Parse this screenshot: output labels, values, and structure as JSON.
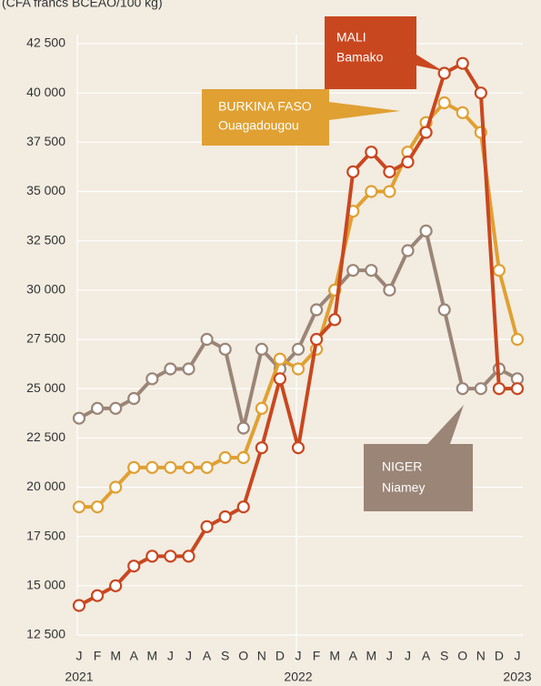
{
  "chart_data": {
    "type": "line",
    "subtitle": "(CFA francs BCEAO/100 kg)",
    "categories": [
      "J",
      "F",
      "M",
      "A",
      "M",
      "J",
      "J",
      "A",
      "S",
      "O",
      "N",
      "D",
      "J",
      "F",
      "M",
      "A",
      "M",
      "J",
      "J",
      "A",
      "S",
      "O",
      "N",
      "D",
      "J"
    ],
    "year_labels": [
      "2021",
      "2022",
      "2023"
    ],
    "ylim": [
      12500,
      42500
    ],
    "yticks": [
      {
        "value": 12500,
        "label": "12 500"
      },
      {
        "value": 15000,
        "label": "15 000"
      },
      {
        "value": 17500,
        "label": "17 500"
      },
      {
        "value": 20000,
        "label": "20 000"
      },
      {
        "value": 22500,
        "label": "22 500"
      },
      {
        "value": 25000,
        "label": "25 000"
      },
      {
        "value": 27500,
        "label": "27 500"
      },
      {
        "value": 30000,
        "label": "30 000"
      },
      {
        "value": 32500,
        "label": "32 500"
      },
      {
        "value": 35000,
        "label": "35 000"
      },
      {
        "value": 37500,
        "label": "37 500"
      },
      {
        "value": 40000,
        "label": "40 000"
      },
      {
        "value": 42500,
        "label": "42 500"
      }
    ],
    "grid": true,
    "series": [
      {
        "name": "NIGER",
        "city": "Niamey",
        "color": "#9b8577",
        "values": [
          23500,
          24000,
          24000,
          24500,
          25500,
          26000,
          26000,
          27500,
          27000,
          23000,
          27000,
          26000,
          27000,
          29000,
          30000,
          31000,
          31000,
          30000,
          32000,
          33000,
          29000,
          25000,
          25000,
          26000,
          25500
        ]
      },
      {
        "name": "BURKINA FASO",
        "city": "Ouagadougou",
        "color": "#e0a032",
        "values": [
          19000,
          19000,
          20000,
          21000,
          21000,
          21000,
          21000,
          21000,
          21500,
          21500,
          24000,
          26500,
          26000,
          27000,
          30000,
          34000,
          35000,
          35000,
          37000,
          38500,
          39500,
          39000,
          38000,
          31000,
          27500
        ]
      },
      {
        "name": "MALI",
        "city": "Bamako",
        "color": "#c9471f",
        "values": [
          14000,
          14500,
          15000,
          16000,
          16500,
          16500,
          16500,
          18000,
          18500,
          19000,
          22000,
          25500,
          22000,
          27500,
          28500,
          36000,
          37000,
          36000,
          36500,
          38000,
          41000,
          41500,
          40000,
          25000,
          25000
        ]
      }
    ]
  }
}
